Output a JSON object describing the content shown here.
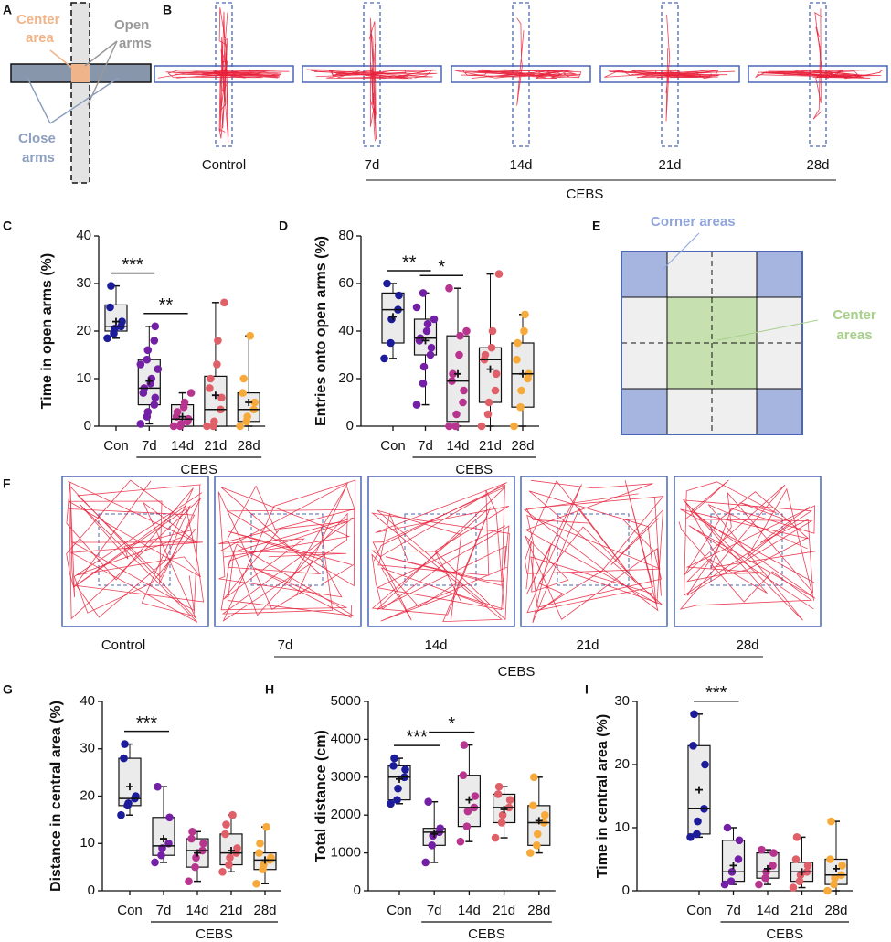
{
  "figure": {
    "letters": [
      "A",
      "B",
      "C",
      "D",
      "E",
      "F",
      "G",
      "H",
      "I"
    ],
    "maze_labels": {
      "center": [
        "Center",
        "area"
      ],
      "open": [
        "Open",
        "arms"
      ],
      "close": [
        "Close",
        "arms"
      ]
    },
    "groups_B": [
      "Control",
      "7d",
      "14d",
      "21d",
      "28d"
    ],
    "bracket_B": "CEBS",
    "field_labels": {
      "corner": "Corner areas",
      "center": [
        "Center",
        "areas"
      ]
    },
    "groups_F": [
      "Control",
      "7d",
      "14d",
      "21d",
      "28d"
    ],
    "bracket_F": "CEBS"
  },
  "chart_data": [
    {
      "type": "box",
      "ylabel": "Time in open arms (%)",
      "categories": [
        "Con",
        "7d",
        "14d",
        "21d",
        "28d"
      ],
      "group_label": "CEBS",
      "colors": [
        "#1c1c9a",
        "#7420a6",
        "#b8358f",
        "#e0606a",
        "#f7a93a"
      ],
      "ylim": [
        0,
        40
      ],
      "yticks": [
        0,
        10,
        20,
        30,
        40
      ],
      "boxes": [
        {
          "min": 18.5,
          "q1": 20,
          "median": 21,
          "q3": 25.5,
          "max": 29.5,
          "mean": 22,
          "points": [
            18.5,
            19.5,
            20.5,
            21,
            22,
            25,
            29.5
          ]
        },
        {
          "min": 0.5,
          "q1": 4.5,
          "median": 8,
          "q3": 14,
          "max": 21,
          "mean": 9.5,
          "points": [
            0.5,
            2,
            3,
            4.5,
            6,
            7,
            8,
            9,
            10,
            12,
            13,
            14,
            16,
            18,
            21
          ]
        },
        {
          "min": 0,
          "q1": 0,
          "median": 1.5,
          "q3": 4.5,
          "max": 7,
          "mean": 2,
          "points": [
            0,
            0,
            0.5,
            1,
            1.5,
            2,
            3,
            4,
            5,
            7
          ]
        },
        {
          "min": 0,
          "q1": 0,
          "median": 3.5,
          "q3": 10.5,
          "max": 26,
          "mean": 6.5,
          "points": [
            0,
            0,
            1,
            3.5,
            6,
            8,
            10,
            13,
            18,
            26
          ]
        },
        {
          "min": 0,
          "q1": 1,
          "median": 3.5,
          "q3": 7,
          "max": 19,
          "mean": 5,
          "points": [
            0,
            1,
            2,
            3.5,
            5,
            7,
            10,
            19
          ]
        }
      ],
      "significance": [
        {
          "label": "***",
          "from": 0,
          "to": 1
        },
        {
          "label": "**",
          "from": 1,
          "to": 2
        }
      ]
    },
    {
      "type": "box",
      "ylabel": "Entries onto open arms (%)",
      "categories": [
        "Con",
        "7d",
        "14d",
        "21d",
        "28d"
      ],
      "group_label": "CEBS",
      "colors": [
        "#1c1c9a",
        "#7420a6",
        "#b8358f",
        "#e0606a",
        "#f7a93a"
      ],
      "ylim": [
        0,
        80
      ],
      "yticks": [
        0,
        20,
        40,
        60,
        80
      ],
      "boxes": [
        {
          "min": 28.5,
          "q1": 35,
          "median": 49,
          "q3": 56,
          "max": 60,
          "mean": 46,
          "points": [
            28.5,
            35,
            45,
            49,
            55,
            60
          ]
        },
        {
          "min": 9,
          "q1": 30,
          "median": 37,
          "q3": 45,
          "max": 56,
          "mean": 36,
          "points": [
            9,
            18,
            25,
            30,
            33,
            36,
            37,
            40,
            43,
            45,
            50,
            56
          ]
        },
        {
          "min": 0,
          "q1": 2,
          "median": 19,
          "q3": 38,
          "max": 58,
          "mean": 22,
          "points": [
            0,
            0,
            5,
            10,
            15,
            19,
            22,
            30,
            38,
            40,
            58
          ]
        },
        {
          "min": 0,
          "q1": 10,
          "median": 28,
          "q3": 33,
          "max": 64,
          "mean": 24,
          "points": [
            0,
            5,
            10,
            15,
            22,
            28,
            30,
            33,
            40,
            64
          ]
        },
        {
          "min": 0,
          "q1": 8,
          "median": 22,
          "q3": 35,
          "max": 47,
          "mean": 22,
          "points": [
            0,
            8,
            15,
            20,
            22,
            28,
            35,
            40,
            47
          ]
        }
      ],
      "significance": [
        {
          "label": "**",
          "from": 0,
          "to": 1
        },
        {
          "label": "*",
          "from": 1,
          "to": 2
        }
      ]
    },
    {
      "type": "box",
      "ylabel": "Distance in central area (%)",
      "categories": [
        "Con",
        "7d",
        "14d",
        "21d",
        "28d"
      ],
      "group_label": "CEBS",
      "colors": [
        "#1c1c9a",
        "#7420a6",
        "#b8358f",
        "#e0606a",
        "#f7a93a"
      ],
      "ylim": [
        0,
        40
      ],
      "yticks": [
        0,
        10,
        20,
        30,
        40
      ],
      "boxes": [
        {
          "min": 16,
          "q1": 18,
          "median": 19.5,
          "q3": 28,
          "max": 31,
          "mean": 22,
          "points": [
            16,
            18,
            18.5,
            19.5,
            20,
            28,
            31
          ]
        },
        {
          "min": 6,
          "q1": 7.5,
          "median": 9.5,
          "q3": 15.5,
          "max": 22,
          "mean": 11,
          "points": [
            6,
            7.5,
            9,
            10,
            15.5,
            22
          ]
        },
        {
          "min": 2,
          "q1": 5,
          "median": 8.5,
          "q3": 11,
          "max": 12.5,
          "mean": 8,
          "points": [
            2,
            5,
            7,
            8.5,
            10,
            11,
            12.5
          ]
        },
        {
          "min": 4,
          "q1": 5.5,
          "median": 8,
          "q3": 12,
          "max": 16,
          "mean": 8.5,
          "points": [
            4,
            5.5,
            7,
            8,
            9,
            12,
            14,
            16
          ]
        },
        {
          "min": 1.5,
          "q1": 4.5,
          "median": 6.5,
          "q3": 8,
          "max": 13.5,
          "mean": 6.5,
          "points": [
            1.5,
            4.5,
            5.5,
            6.5,
            7,
            8,
            10,
            13.5
          ]
        }
      ],
      "significance": [
        {
          "label": "***",
          "from": 0,
          "to": 1
        }
      ]
    },
    {
      "type": "box",
      "ylabel": "Total distance (cm)",
      "categories": [
        "Con",
        "7d",
        "14d",
        "21d",
        "28d"
      ],
      "group_label": "CEBS",
      "colors": [
        "#1c1c9a",
        "#7420a6",
        "#b8358f",
        "#e0606a",
        "#f7a93a"
      ],
      "ylim": [
        0,
        5000
      ],
      "yticks": [
        0,
        1000,
        2000,
        3000,
        4000,
        5000
      ],
      "boxes": [
        {
          "min": 2300,
          "q1": 2400,
          "median": 3000,
          "q3": 3300,
          "max": 3500,
          "mean": 2950,
          "points": [
            2300,
            2400,
            2700,
            3000,
            3200,
            3300,
            3500
          ]
        },
        {
          "min": 750,
          "q1": 1200,
          "median": 1550,
          "q3": 1650,
          "max": 2350,
          "mean": 1500,
          "points": [
            750,
            1200,
            1450,
            1550,
            1650,
            2350
          ]
        },
        {
          "min": 1300,
          "q1": 1700,
          "median": 2200,
          "q3": 3050,
          "max": 3850,
          "mean": 2400,
          "points": [
            1300,
            1700,
            2100,
            2200,
            2500,
            3050,
            3850
          ]
        },
        {
          "min": 1400,
          "q1": 1800,
          "median": 2200,
          "q3": 2550,
          "max": 2750,
          "mean": 2150,
          "points": [
            1400,
            1800,
            2000,
            2200,
            2400,
            2550,
            2750
          ]
        },
        {
          "min": 1000,
          "q1": 1200,
          "median": 1800,
          "q3": 2250,
          "max": 3000,
          "mean": 1850,
          "points": [
            1000,
            1200,
            1500,
            1800,
            2000,
            2250,
            3000
          ]
        }
      ],
      "significance": [
        {
          "label": "***",
          "from": 0,
          "to": 1
        },
        {
          "label": "*",
          "from": 1,
          "to": 2
        }
      ]
    },
    {
      "type": "box",
      "ylabel": "Time in central area (%)",
      "categories": [
        "Con",
        "7d",
        "14d",
        "21d",
        "28d"
      ],
      "group_label": "CEBS",
      "colors": [
        "#1c1c9a",
        "#7420a6",
        "#b8358f",
        "#e0606a",
        "#f7a93a"
      ],
      "ylim": [
        0,
        30
      ],
      "yticks": [
        0,
        10,
        20,
        30
      ],
      "boxes": [
        {
          "min": 8.5,
          "q1": 9,
          "median": 13,
          "q3": 23,
          "max": 28,
          "mean": 16,
          "points": [
            8.5,
            9,
            11,
            13,
            20,
            23,
            28
          ]
        },
        {
          "min": 1,
          "q1": 1.5,
          "median": 3,
          "q3": 8,
          "max": 10,
          "mean": 4,
          "points": [
            1,
            1.5,
            3,
            5,
            8,
            10
          ]
        },
        {
          "min": 1,
          "q1": 2,
          "median": 3,
          "q3": 6,
          "max": 6.5,
          "mean": 3.5,
          "points": [
            1,
            2,
            3,
            4,
            6,
            6.5
          ]
        },
        {
          "min": 0.5,
          "q1": 1.5,
          "median": 3,
          "q3": 4.5,
          "max": 8.5,
          "mean": 3,
          "points": [
            0.5,
            1.5,
            2.5,
            3,
            4,
            5,
            8.5
          ]
        },
        {
          "min": 0,
          "q1": 1,
          "median": 2.5,
          "q3": 5,
          "max": 11,
          "mean": 3.5,
          "points": [
            0,
            1,
            2,
            2.5,
            4,
            5,
            11
          ]
        }
      ],
      "significance": [
        {
          "label": "***",
          "from": 0,
          "to": 1
        }
      ]
    }
  ]
}
